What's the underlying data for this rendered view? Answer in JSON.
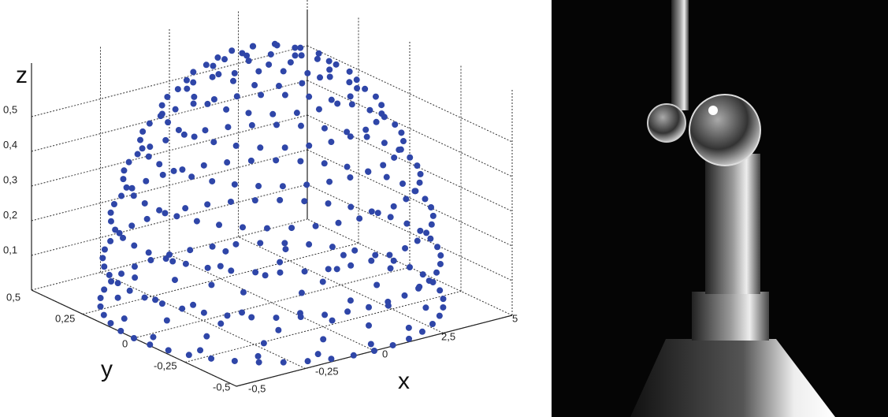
{
  "figure": {
    "z_label": "z",
    "y_label": "y",
    "x_label": "x",
    "z_ticks": [
      "0,1",
      "0,2",
      "0,3",
      "0,4",
      "0,5"
    ],
    "y_ticks": [
      "0,5",
      "0,25",
      "0",
      "-0,25",
      "-0,5"
    ],
    "x_ticks": [
      "-0,5",
      "-0,25",
      "0",
      "2,5",
      "5"
    ]
  }
}
